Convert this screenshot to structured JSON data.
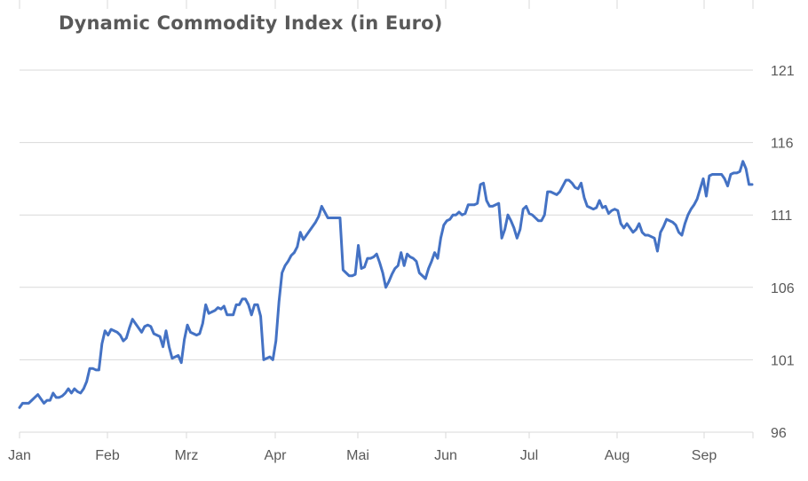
{
  "chart_data": {
    "type": "line",
    "title": "Dynamic Commodity Index (in Euro)",
    "xlabel": "",
    "ylabel": "",
    "ylim": [
      96,
      121
    ],
    "yticks": [
      96,
      101,
      106,
      111,
      116,
      121
    ],
    "ytick_labels": [
      "96",
      "101",
      "106",
      "111",
      "116",
      "121"
    ],
    "y_axis_side": "right",
    "xtick_labels": [
      "Jan",
      "Feb",
      "Mrz",
      "Apr",
      "Mai",
      "Jun",
      "Jul",
      "Aug",
      "Sep"
    ],
    "grid": "horizontal",
    "legend": "none",
    "line_color": "#4472C4",
    "grid_color": "#D9D9D9",
    "series": [
      {
        "values": [
          97.7,
          98.0,
          98.0,
          98.0,
          98.2,
          98.4,
          98.6,
          98.3,
          98.0,
          98.2,
          98.2,
          98.7,
          98.4,
          98.4,
          98.5,
          98.7,
          99.0,
          98.7,
          99.0,
          98.8,
          98.7,
          99.0,
          99.5,
          100.4,
          100.4,
          100.3,
          100.3,
          102.1,
          103.0,
          102.7,
          103.1,
          103.0,
          102.9,
          102.7,
          102.3,
          102.5,
          103.2,
          103.8,
          103.5,
          103.2,
          102.9,
          103.3,
          103.4,
          103.3,
          102.8,
          102.7,
          102.6,
          101.9,
          103.0,
          101.9,
          101.1,
          101.2,
          101.3,
          100.8,
          102.4,
          103.4,
          102.9,
          102.8,
          102.7,
          102.8,
          103.5,
          104.8,
          104.2,
          104.3,
          104.4,
          104.6,
          104.5,
          104.7,
          104.1,
          104.1,
          104.1,
          104.8,
          104.8,
          105.2,
          105.2,
          104.8,
          104.1,
          104.8,
          104.8,
          104.0,
          101.0,
          101.1,
          101.2,
          101.0,
          102.3,
          105.0,
          107.0,
          107.5,
          107.8,
          108.2,
          108.4,
          108.8,
          109.8,
          109.3,
          109.6,
          109.9,
          110.2,
          110.5,
          110.9,
          111.6,
          111.2,
          110.8,
          110.8,
          110.8,
          110.8,
          110.8,
          107.2,
          107.0,
          106.8,
          106.8,
          106.9,
          108.9,
          107.3,
          107.4,
          108.0,
          108.0,
          108.1,
          108.3,
          107.7,
          107.0,
          106.0,
          106.4,
          106.9,
          107.3,
          107.5,
          108.4,
          107.5,
          108.3,
          108.1,
          108.0,
          107.8,
          107.0,
          106.8,
          106.6,
          107.3,
          107.8,
          108.4,
          108.0,
          109.4,
          110.3,
          110.6,
          110.7,
          111.0,
          111.0,
          111.2,
          111.0,
          111.1,
          111.7,
          111.7,
          111.7,
          111.8,
          113.1,
          113.2,
          112.0,
          111.6,
          111.6,
          111.7,
          111.8,
          109.4,
          110.0,
          111.0,
          110.6,
          110.1,
          109.4,
          110.0,
          111.4,
          111.6,
          111.1,
          111.0,
          110.8,
          110.6,
          110.6,
          111.0,
          112.6,
          112.6,
          112.5,
          112.4,
          112.6,
          113.0,
          113.4,
          113.4,
          113.2,
          112.9,
          112.8,
          113.2,
          112.2,
          111.6,
          111.5,
          111.4,
          111.5,
          112.0,
          111.5,
          111.6,
          111.1,
          111.3,
          111.4,
          111.3,
          110.4,
          110.1,
          110.4,
          110.1,
          109.8,
          110.0,
          110.4,
          109.8,
          109.6,
          109.6,
          109.5,
          109.4,
          108.5,
          109.8,
          110.2,
          110.7,
          110.6,
          110.5,
          110.3,
          109.8,
          109.6,
          110.4,
          111.0,
          111.4,
          111.7,
          112.1,
          112.8,
          113.5,
          112.3,
          113.7,
          113.8,
          113.8,
          113.8,
          113.8,
          113.5,
          113.0,
          113.8,
          113.9,
          113.9,
          114.0,
          114.7,
          114.2,
          113.1,
          113.1
        ]
      }
    ]
  }
}
